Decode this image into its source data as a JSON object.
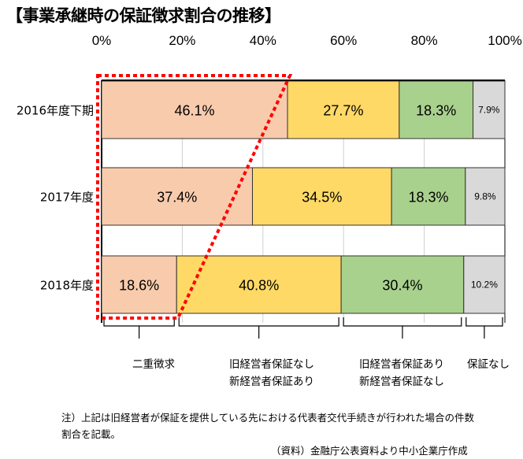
{
  "title": "【事業承継時の保証徴求割合の推移】",
  "chart_data": {
    "type": "bar",
    "orientation": "horizontal-stacked-100",
    "categories": [
      "2016年度下期",
      "2017年度",
      "2018年度"
    ],
    "series": [
      {
        "name": "二重徴求",
        "values": [
          46.1,
          37.4,
          18.6
        ],
        "color": "#F8CBAD"
      },
      {
        "name": "旧経営者保証なし 新経営者保証あり",
        "values": [
          27.7,
          34.5,
          40.8
        ],
        "color": "#FFD966"
      },
      {
        "name": "旧経営者保証あり 新経営者保証なし",
        "values": [
          18.3,
          18.3,
          30.4
        ],
        "color": "#A9D18E"
      },
      {
        "name": "保証なし",
        "values": [
          7.9,
          9.8,
          10.2
        ],
        "color": "#D9D9D9"
      }
    ],
    "value_labels": [
      [
        "46.1%",
        "27.7%",
        "18.3%",
        "7.9%"
      ],
      [
        "37.4%",
        "34.5%",
        "18.3%",
        "9.8%"
      ],
      [
        "18.6%",
        "40.8%",
        "30.4%",
        "10.2%"
      ]
    ],
    "x_ticks": [
      "0%",
      "20%",
      "40%",
      "60%",
      "80%",
      "100%"
    ],
    "xlim": [
      0,
      100
    ],
    "grid": true,
    "legend_brackets": [
      {
        "lines": [
          "二重徴求"
        ]
      },
      {
        "lines": [
          "旧経営者保証なし",
          "新経営者保証あり"
        ]
      },
      {
        "lines": [
          "旧経営者保証あり",
          "新経営者保証なし"
        ]
      },
      {
        "lines": [
          "保証なし"
        ]
      }
    ],
    "highlight_color": "#FF0000"
  },
  "notes": {
    "note1": "注）上記は旧経営者が保証を提供している先における代表者交代手続きが行われた場合の件数",
    "note2": "割合を記載。",
    "source": "（資料）金融庁公表資料より中小企業庁作成"
  }
}
